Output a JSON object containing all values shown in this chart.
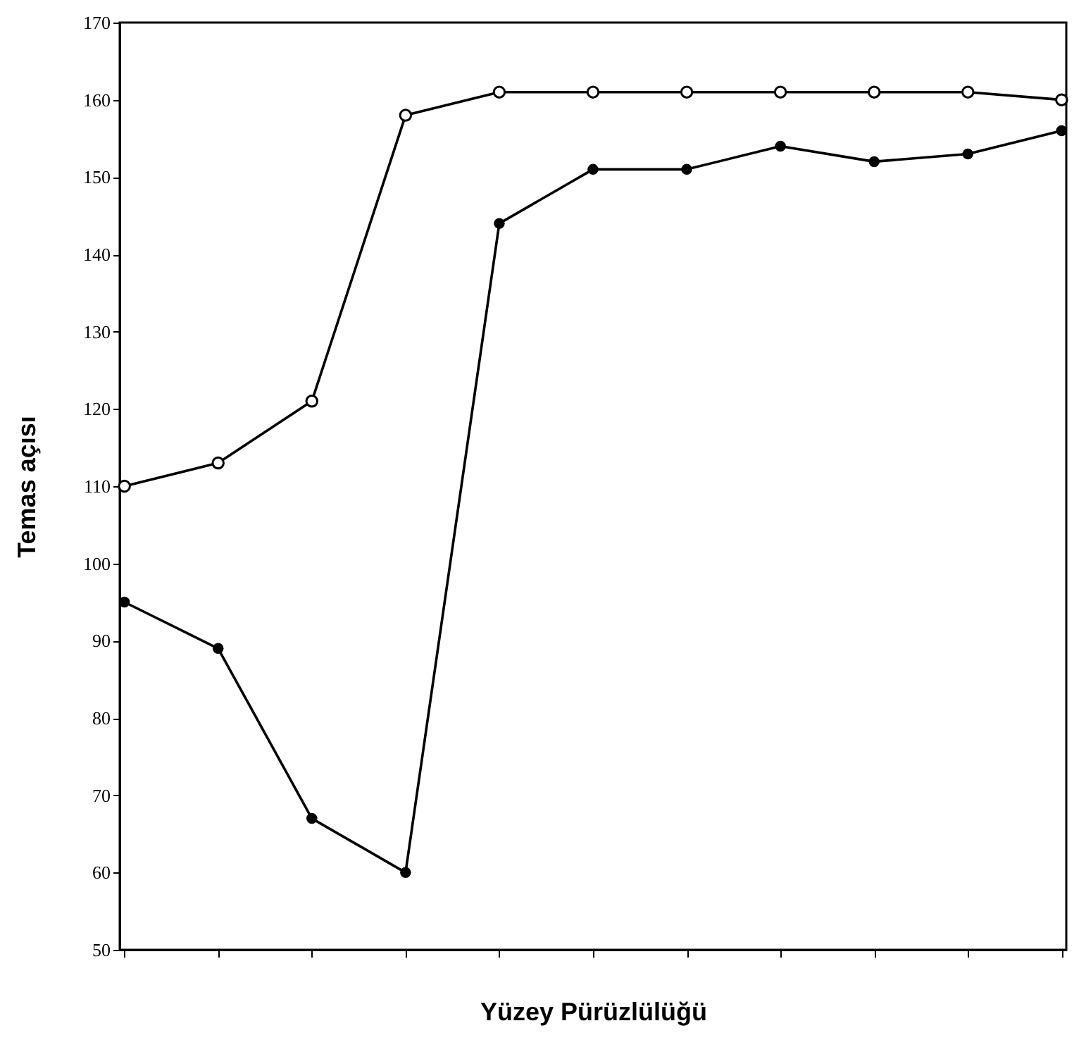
{
  "chart_data": {
    "type": "line",
    "xlabel": "Yüzey Pürüzlülüğü",
    "ylabel": "Temas açısı",
    "categories": [
      null,
      null,
      null,
      null,
      null,
      null,
      null,
      null,
      null,
      null,
      null
    ],
    "series": [
      {
        "color": "#000000",
        "values": [
          110,
          113,
          121,
          158,
          161,
          161,
          161,
          161,
          161,
          161,
          160
        ]
      },
      {
        "color": "#000000",
        "values": [
          95,
          89,
          67,
          60,
          144,
          151,
          151,
          154,
          152,
          153,
          156
        ]
      }
    ],
    "ylim": [
      50,
      170
    ],
    "yticks": [
      50,
      60,
      70,
      80,
      90,
      100,
      110,
      120,
      130,
      140,
      150,
      160,
      170
    ],
    "marker": "circle",
    "line_style": "solid",
    "tick_labels": "y"
  }
}
